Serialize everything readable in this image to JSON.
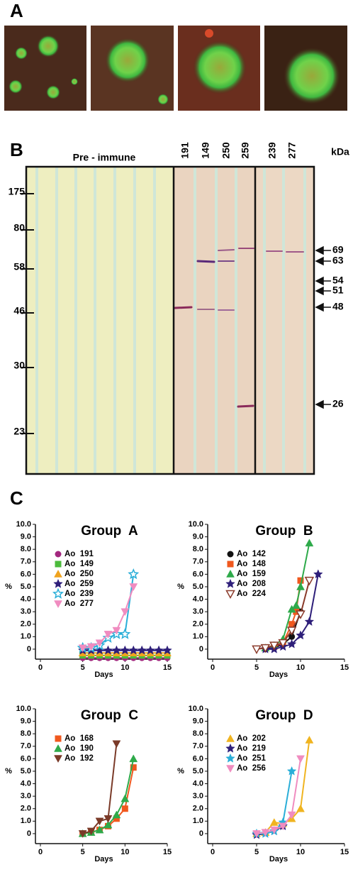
{
  "panels": {
    "a": "A",
    "b": "B",
    "c": "C"
  },
  "blot": {
    "title": "Pre - immune",
    "lanes": [
      "191",
      "149",
      "250",
      "259",
      "239",
      "277"
    ],
    "unit": "kDa",
    "left_markers": [
      "175",
      "80",
      "58",
      "46",
      "30",
      "23"
    ],
    "right_markers": [
      "69",
      "63",
      "54",
      "51",
      "48",
      "26"
    ]
  },
  "chart_data": [
    {
      "type": "line",
      "title": "Group  A",
      "xlabel": "Days",
      "ylabel": "%",
      "xlim": [
        0,
        15
      ],
      "xticks": [
        0,
        5,
        10,
        15
      ],
      "ylim": [
        -0.8,
        10
      ],
      "yticks": [
        0,
        {
          "value": 1,
          "label": "1.0"
        },
        {
          "value": 2,
          "label": "2.0"
        },
        {
          "value": 3,
          "label": "3.0"
        },
        {
          "value": 4,
          "label": "4.0"
        },
        {
          "value": 5,
          "label": "5.0"
        },
        {
          "value": 6,
          "label": "6.0"
        },
        {
          "value": 7,
          "label": "7.0"
        },
        {
          "value": 8,
          "label": "8.0"
        },
        {
          "value": 9,
          "label": "9.0"
        },
        {
          "value": 10,
          "label": "10.0"
        }
      ],
      "series": [
        {
          "name": "Ao  191",
          "color": "#a3287f",
          "marker": "circle",
          "x": [
            5,
            6,
            7,
            8,
            9,
            10,
            11,
            12,
            13,
            14,
            15
          ],
          "values": [
            -0.7,
            -0.7,
            -0.7,
            -0.7,
            -0.7,
            -0.7,
            -0.7,
            -0.7,
            -0.7,
            -0.7,
            -0.7
          ]
        },
        {
          "name": "Ao  149",
          "color": "#4cbb3c",
          "marker": "square",
          "x": [
            5,
            6,
            7,
            8,
            9,
            10,
            11,
            12,
            13,
            14,
            15
          ],
          "values": [
            -0.5,
            -0.5,
            -0.5,
            -0.5,
            -0.5,
            -0.5,
            -0.5,
            -0.5,
            -0.5,
            -0.5,
            -0.5
          ]
        },
        {
          "name": "Ao  250",
          "color": "#f0a31e",
          "marker": "triangle",
          "x": [
            5,
            6,
            7,
            8,
            9,
            10,
            11,
            12,
            13,
            14,
            15
          ],
          "values": [
            -0.3,
            -0.3,
            -0.3,
            -0.3,
            -0.3,
            -0.3,
            -0.3,
            -0.3,
            -0.3,
            -0.3,
            -0.3
          ]
        },
        {
          "name": "Ao  259",
          "color": "#2e1f7a",
          "marker": "star",
          "x": [
            5,
            6,
            7,
            8,
            9,
            10,
            11,
            12,
            13,
            14,
            15
          ],
          "values": [
            -0.1,
            -0.1,
            -0.1,
            -0.1,
            -0.1,
            -0.1,
            -0.1,
            -0.1,
            -0.1,
            -0.1,
            -0.1
          ]
        },
        {
          "name": "Ao  239",
          "color": "#2aaed8",
          "marker": "open-star",
          "x": [
            5,
            6,
            7,
            8,
            9,
            10,
            11
          ],
          "values": [
            0.1,
            0.1,
            0.3,
            0.9,
            1.2,
            1.2,
            6.0
          ]
        },
        {
          "name": "Ao  277",
          "color": "#f08cc0",
          "marker": "down-triangle",
          "x": [
            5,
            6,
            7,
            8,
            9,
            10,
            11
          ],
          "values": [
            0.1,
            0.2,
            0.5,
            1.2,
            1.5,
            3.0,
            5.0
          ]
        }
      ]
    },
    {
      "type": "line",
      "title": "Group  B",
      "xlabel": "Days",
      "ylabel": "%",
      "xlim": [
        0,
        15
      ],
      "xticks": [
        0,
        5,
        10,
        15
      ],
      "ylim": [
        -0.8,
        10
      ],
      "yticks": [
        0,
        {
          "value": 1,
          "label": "1.0"
        },
        {
          "value": 2,
          "label": "2.0"
        },
        {
          "value": 3,
          "label": "3.0"
        },
        {
          "value": 4,
          "label": "4.0"
        },
        {
          "value": 5,
          "label": "5.0"
        },
        {
          "value": 6,
          "label": "6.0"
        },
        {
          "value": 7,
          "label": "7.0"
        },
        {
          "value": 8,
          "label": "8.0"
        },
        {
          "value": 9,
          "label": "9.0"
        },
        {
          "value": 10,
          "label": "10.0"
        }
      ],
      "series": [
        {
          "name": "Ao  142",
          "color": "#111111",
          "marker": "circle",
          "x": [
            6,
            7,
            8,
            9,
            10
          ],
          "values": [
            0,
            0.1,
            0.4,
            1.0,
            3.0
          ]
        },
        {
          "name": "Ao  148",
          "color": "#f0581e",
          "marker": "square",
          "x": [
            6,
            7,
            8,
            9,
            9.5,
            10
          ],
          "values": [
            0.1,
            0.2,
            0.5,
            2.0,
            3.0,
            5.5
          ]
        },
        {
          "name": "Ao  159",
          "color": "#2eaa4a",
          "marker": "triangle",
          "x": [
            6,
            7,
            8,
            9,
            9.5,
            10,
            11
          ],
          "values": [
            0.1,
            0.3,
            0.8,
            3.2,
            3.5,
            5.0,
            8.5
          ]
        },
        {
          "name": "Ao  208",
          "color": "#2e1f7a",
          "marker": "star",
          "x": [
            6,
            7,
            8,
            9,
            10,
            11,
            12
          ],
          "values": [
            0,
            0,
            0.2,
            0.4,
            1.1,
            2.2,
            6.0
          ]
        },
        {
          "name": "Ao  224",
          "color": "#8a3a2a",
          "marker": "open-down-triangle",
          "x": [
            5,
            6,
            7,
            8,
            9,
            10,
            11
          ],
          "values": [
            0,
            0.1,
            0.3,
            0.5,
            1.5,
            2.8,
            5.5
          ]
        }
      ]
    },
    {
      "type": "line",
      "title": "Group  C",
      "xlabel": "Days",
      "ylabel": "%",
      "xlim": [
        0,
        15
      ],
      "xticks": [
        0,
        5,
        10,
        15
      ],
      "ylim": [
        -0.8,
        10
      ],
      "yticks": [
        0,
        {
          "value": 1,
          "label": "1.0"
        },
        {
          "value": 2,
          "label": "2.0"
        },
        {
          "value": 3,
          "label": "3.0"
        },
        {
          "value": 4,
          "label": "4.0"
        },
        {
          "value": 5,
          "label": "5.0"
        },
        {
          "value": 6,
          "label": "6.0"
        },
        {
          "value": 7,
          "label": "7.0"
        },
        {
          "value": 8,
          "label": "8.0"
        },
        {
          "value": 9,
          "label": "9.0"
        },
        {
          "value": 10,
          "label": "10.0"
        }
      ],
      "series": [
        {
          "name": "Ao  168",
          "color": "#f0581e",
          "marker": "square",
          "x": [
            5,
            6,
            7,
            8,
            9,
            10,
            11
          ],
          "values": [
            0,
            0.1,
            0.3,
            0.6,
            1.2,
            2.0,
            5.3
          ]
        },
        {
          "name": "Ao  190",
          "color": "#2eaa4a",
          "marker": "triangle",
          "x": [
            5,
            6,
            7,
            8,
            9,
            10,
            11
          ],
          "values": [
            0,
            0.1,
            0.3,
            0.7,
            1.5,
            2.8,
            6.0
          ]
        },
        {
          "name": "Ao  192",
          "color": "#7a3a28",
          "marker": "down-triangle",
          "x": [
            5,
            6,
            7,
            8,
            9
          ],
          "values": [
            0,
            0.2,
            1.0,
            1.2,
            7.2
          ]
        }
      ]
    },
    {
      "type": "line",
      "title": "Group  D",
      "xlabel": "Days",
      "ylabel": "%",
      "xlim": [
        0,
        15
      ],
      "xticks": [
        0,
        5,
        10,
        15
      ],
      "ylim": [
        -0.8,
        10
      ],
      "yticks": [
        0,
        {
          "value": 1,
          "label": "1.0"
        },
        {
          "value": 2,
          "label": "2.0"
        },
        {
          "value": 3,
          "label": "3.0"
        },
        {
          "value": 4,
          "label": "4.0"
        },
        {
          "value": 5,
          "label": "5.0"
        },
        {
          "value": 6,
          "label": "6.0"
        },
        {
          "value": 7,
          "label": "7.0"
        },
        {
          "value": 8,
          "label": "8.0"
        },
        {
          "value": 9,
          "label": "9.0"
        },
        {
          "value": 10,
          "label": "10.0"
        }
      ],
      "series": [
        {
          "name": "Ao  202",
          "color": "#f0b420",
          "marker": "triangle",
          "x": [
            5,
            6,
            7,
            8,
            9,
            10,
            11
          ],
          "values": [
            0,
            0.1,
            0.9,
            0.8,
            1.2,
            2.0,
            7.5
          ]
        },
        {
          "name": "Ao  219",
          "color": "#2e1f7a",
          "marker": "star",
          "x": [
            5,
            6,
            7,
            8
          ],
          "values": [
            -0.1,
            0,
            0.2,
            0.6
          ]
        },
        {
          "name": "Ao  251",
          "color": "#2aaed8",
          "marker": "star",
          "x": [
            5,
            6,
            7,
            8,
            9
          ],
          "values": [
            0,
            0,
            0.2,
            0.9,
            5.0
          ]
        },
        {
          "name": "Ao  256",
          "color": "#f08cc0",
          "marker": "down-triangle",
          "x": [
            5,
            6,
            7,
            8,
            9,
            10
          ],
          "values": [
            0,
            0.1,
            0.3,
            0.6,
            1.5,
            6.0
          ]
        }
      ]
    }
  ]
}
